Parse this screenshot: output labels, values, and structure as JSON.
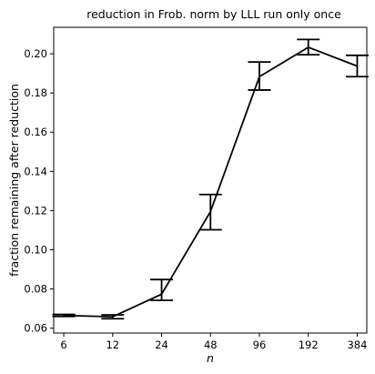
{
  "chart_data": {
    "type": "line",
    "title": "reduction in Frob. norm by LLL run only once",
    "xlabel": "n",
    "ylabel": "fraction remaining after reduction",
    "x_scale": "log2",
    "categories": [
      "6",
      "12",
      "24",
      "48",
      "96",
      "192",
      "384"
    ],
    "x": [
      6,
      12,
      24,
      48,
      96,
      192,
      384
    ],
    "xlim": [
      5.2,
      440
    ],
    "ylim": [
      0.0575,
      0.2135
    ],
    "yticks": [
      0.06,
      0.08,
      0.1,
      0.12,
      0.14,
      0.16,
      0.18,
      0.2
    ],
    "ytick_labels": [
      "0.06",
      "0.08",
      "0.10",
      "0.12",
      "0.14",
      "0.16",
      "0.18",
      "0.20"
    ],
    "series": [
      {
        "values": [
          0.0665,
          0.0658,
          0.0773,
          0.1195,
          0.1883,
          0.2033,
          0.1937
        ],
        "err_low": [
          0.066,
          0.0648,
          0.0742,
          0.1102,
          0.1815,
          0.1995,
          0.1883
        ],
        "err_high": [
          0.067,
          0.0668,
          0.0848,
          0.1282,
          0.1958,
          0.2073,
          0.1992
        ]
      }
    ],
    "grid": false,
    "legend": "none",
    "line_color": "#000000",
    "errorbar_color": "#000000"
  }
}
